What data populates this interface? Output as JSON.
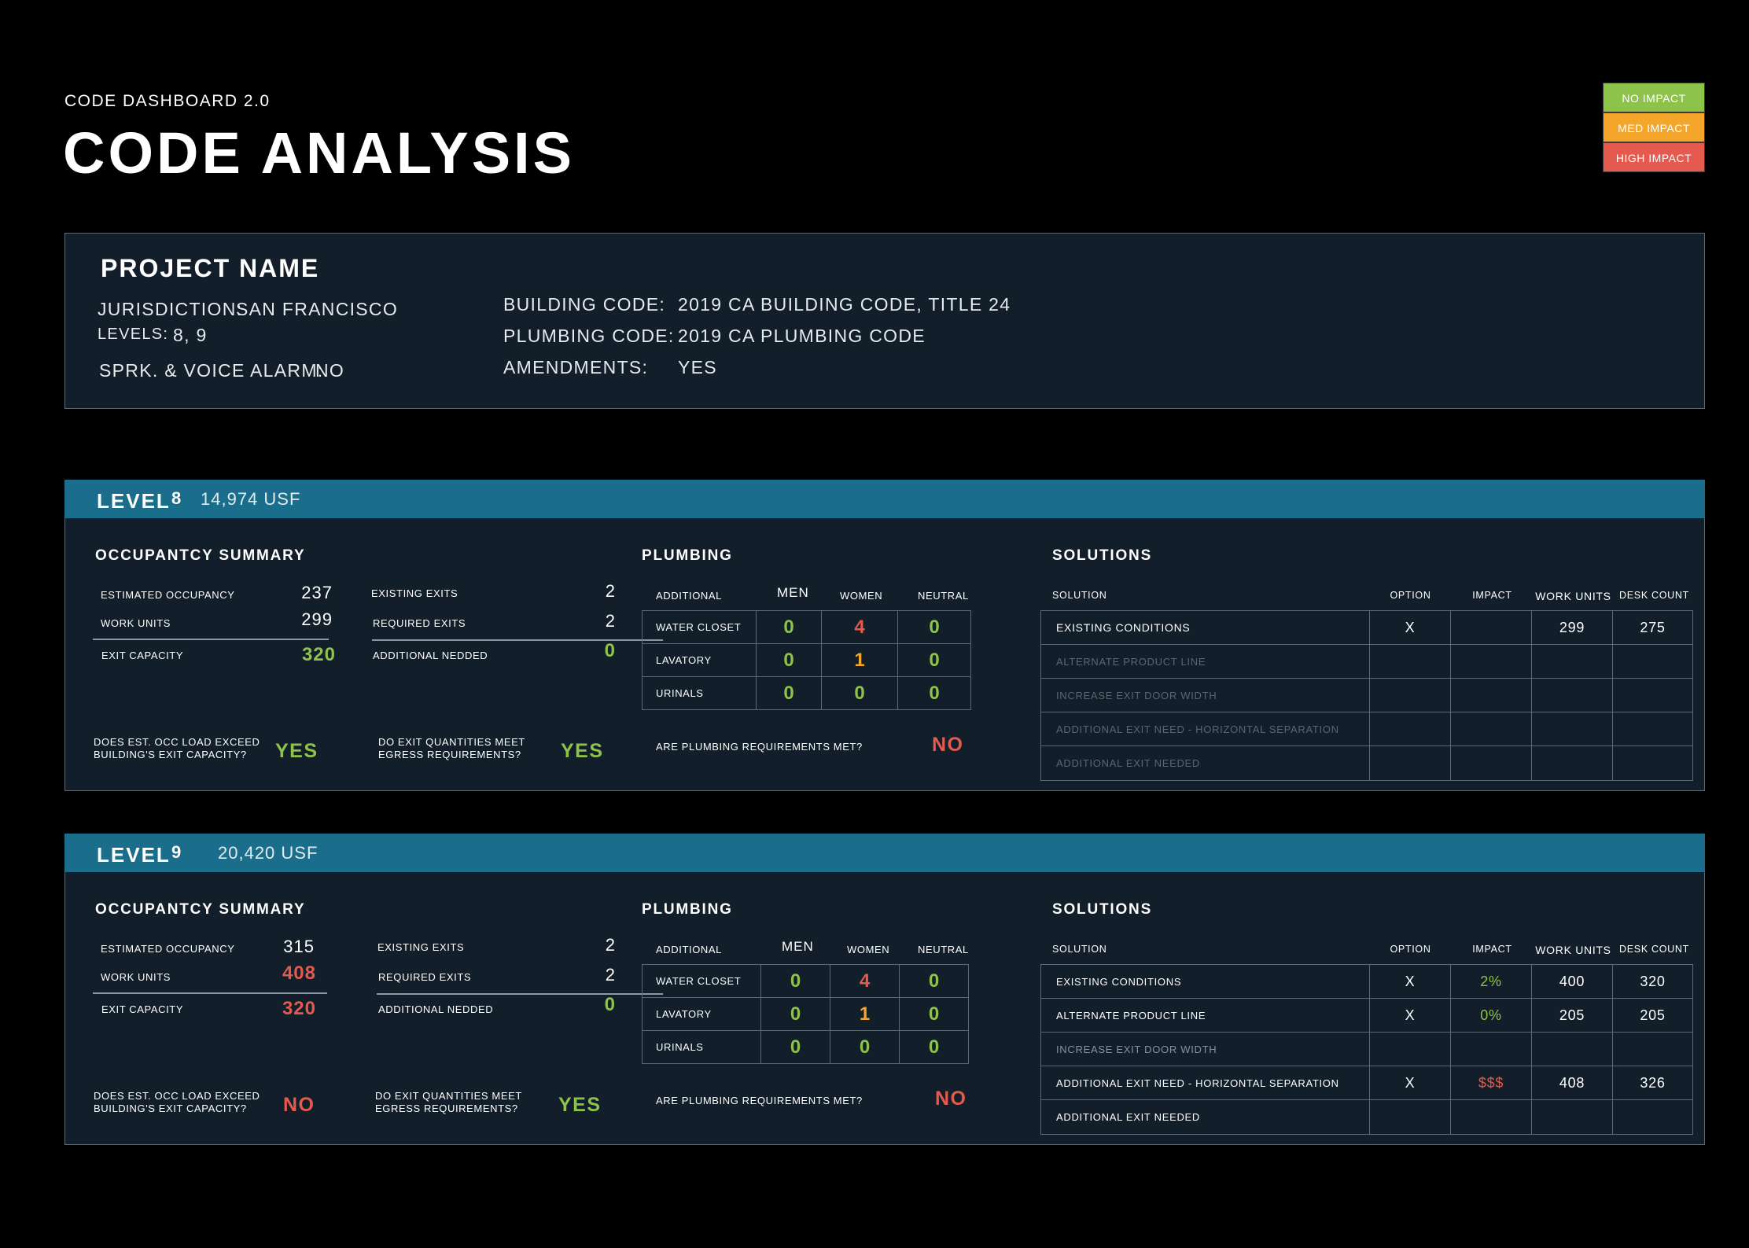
{
  "header": {
    "subtitle": "CODE DASHBOARD 2.0",
    "title": "CODE ANALYSIS"
  },
  "legend": [
    {
      "label": "NO IMPACT",
      "color": "#8dc34a"
    },
    {
      "label": "MED IMPACT",
      "color": "#f4a62b"
    },
    {
      "label": "HIGH IMPACT",
      "color": "#e45a4e"
    }
  ],
  "project": {
    "name": "PROJECT NAME",
    "jurisdiction_label": "JURISDICTION:",
    "jurisdiction": "SAN FRANCISCO",
    "levels_label": "LEVELS:",
    "levels": "8, 9",
    "alarm_label": "SPRK. & VOICE ALARM:",
    "alarm": "NO",
    "building_code_label": "BUILDING CODE:",
    "building_code": "2019 CA BUILDING CODE, TITLE 24",
    "plumbing_code_label": "PLUMBING CODE:",
    "plumbing_code": "2019 CA PLUMBING CODE",
    "amendments_label": "AMENDMENTS:",
    "amendments": "YES"
  },
  "labels": {
    "level": "LEVEL",
    "occupancy_summary": "OCCUPANTCY  SUMMARY",
    "estimated_occupancy": "ESTIMATED OCCUPANCY",
    "work_units": "WORK UNITS",
    "exit_capacity": "EXIT CAPACITY",
    "existing_exits": "EXISTING EXITS",
    "required_exits": "REQUIRED EXITS",
    "additional_needed": "ADDITIONAL NEDDED",
    "q_exceed_1": "DOES EST. OCC LOAD EXCEED",
    "q_exceed_2": "BUILDING'S EXIT CAPACITY?",
    "q_exits_1": "DO EXIT QUANTITIES MEET",
    "q_exits_2": "EGRESS REQUIREMENTS?",
    "plumbing": "PLUMBING",
    "additional": "ADDITIONAL",
    "men": "MEN",
    "women": "WOMEN",
    "neutral": "NEUTRAL",
    "water_closet": "WATER CLOSET",
    "lavatory": "LAVATORY",
    "urinals": "URINALS",
    "q_plumbing": "ARE PLUMBING REQUIREMENTS MET?",
    "solutions": "SOLUTIONS",
    "solution": "SOLUTION",
    "option": "OPTION",
    "impact": "IMPACT",
    "work_units_col": "WORK UNITS",
    "desk_count": "DESK COUNT",
    "sol_1": "EXISTING CONDITIONS",
    "sol_2": "ALTERNATE PRODUCT LINE",
    "sol_3": "INCREASE EXIT DOOR WIDTH",
    "sol_4": "ADDITIONAL EXIT NEED - HORIZONTAL SEPARATION",
    "sol_5": "ADDITIONAL EXIT NEEDED"
  },
  "level8": {
    "number": "8",
    "usf": "14,974 USF",
    "estimated_occupancy": "237",
    "work_units": "299",
    "exit_capacity": "320",
    "existing_exits": "2",
    "required_exits": "2",
    "additional_needed": "0",
    "exceed_answer": "YES",
    "exits_answer": "YES",
    "plumbing": {
      "water_closet": [
        "0",
        "4",
        "0"
      ],
      "lavatory": [
        "0",
        "1",
        "0"
      ],
      "urinals": [
        "0",
        "0",
        "0"
      ]
    },
    "plumbing_answer": "NO",
    "solutions": [
      {
        "option": "X",
        "impact": "",
        "work_units": "299",
        "desk_count": "275"
      },
      {
        "option": "",
        "impact": "",
        "work_units": "",
        "desk_count": ""
      },
      {
        "option": "",
        "impact": "",
        "work_units": "",
        "desk_count": ""
      },
      {
        "option": "",
        "impact": "",
        "work_units": "",
        "desk_count": ""
      },
      {
        "option": "",
        "impact": "",
        "work_units": "",
        "desk_count": ""
      }
    ]
  },
  "level9": {
    "number": "9",
    "usf": "20,420 USF",
    "estimated_occupancy": "315",
    "work_units": "408",
    "exit_capacity": "320",
    "existing_exits": "2",
    "required_exits": "2",
    "additional_needed": "0",
    "exceed_answer": "NO",
    "exits_answer": "YES",
    "plumbing": {
      "water_closet": [
        "0",
        "4",
        "0"
      ],
      "lavatory": [
        "0",
        "1",
        "0"
      ],
      "urinals": [
        "0",
        "0",
        "0"
      ]
    },
    "plumbing_answer": "NO",
    "solutions": [
      {
        "option": "X",
        "impact": "2%",
        "work_units": "400",
        "desk_count": "320"
      },
      {
        "option": "X",
        "impact": "0%",
        "work_units": "205",
        "desk_count": "205"
      },
      {
        "option": "",
        "impact": "",
        "work_units": "",
        "desk_count": ""
      },
      {
        "option": "X",
        "impact": "$$$",
        "work_units": "408",
        "desk_count": "326"
      },
      {
        "option": "",
        "impact": "",
        "work_units": "",
        "desk_count": ""
      }
    ]
  }
}
